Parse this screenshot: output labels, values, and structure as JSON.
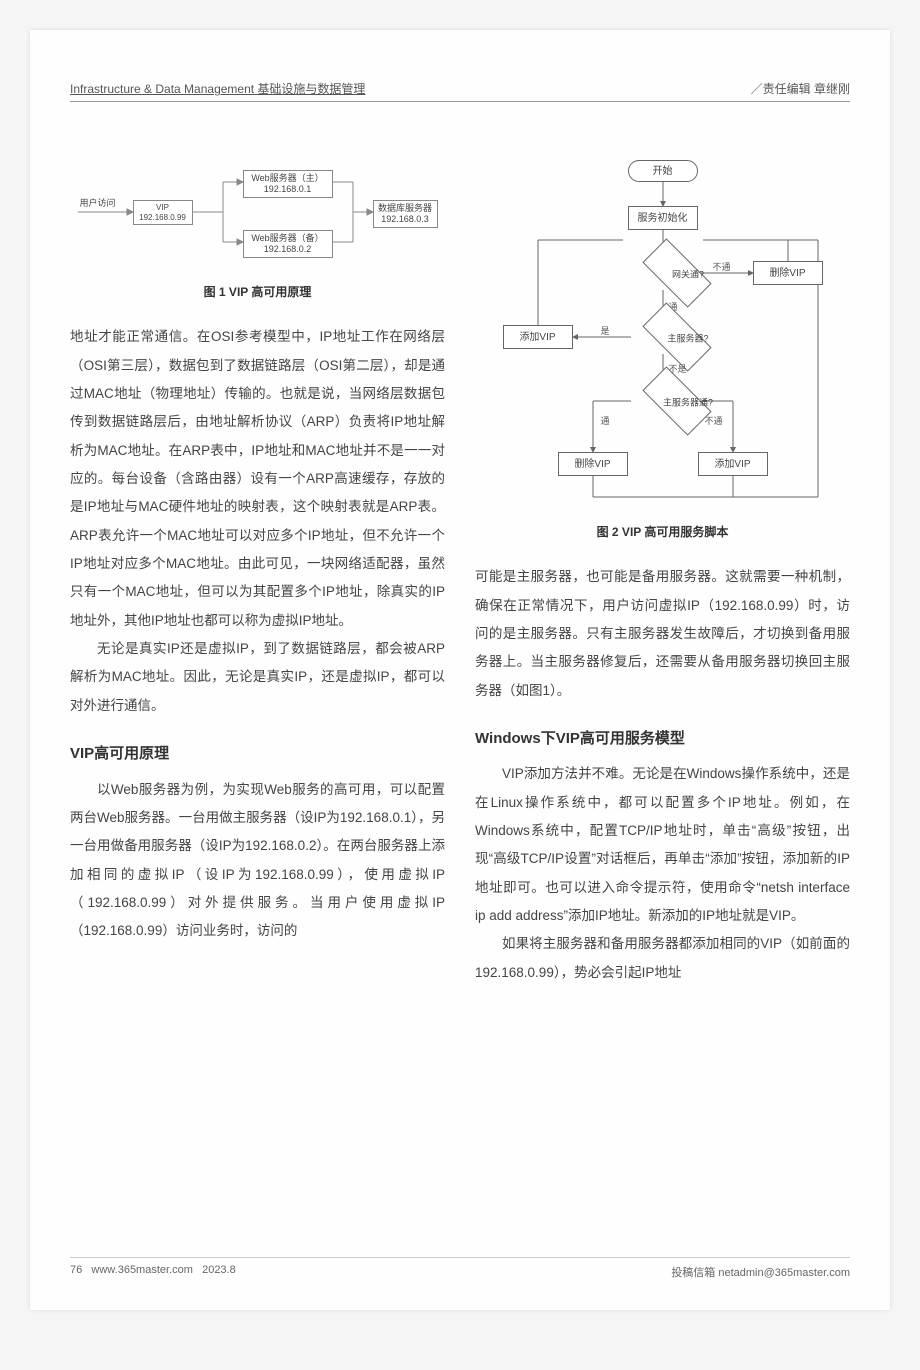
{
  "header": {
    "left": "Infrastructure & Data Management 基础设施与数据管理",
    "right": "／责任编辑 章继刚"
  },
  "fig1": {
    "caption": "图 1 VIP 高可用原理",
    "user_label": "用户访问",
    "vip_box": "VIP\n192.168.0.99",
    "web_main": "Web服务器（主）\n192.168.0.1",
    "web_backup": "Web服务器（备）\n192.168.0.2",
    "db": "数据库服务器\n192.168.0.3",
    "line_color": "#888888"
  },
  "fig2": {
    "caption": "图 2 VIP 高可用服务脚本",
    "start": "开始",
    "init": "服务初始化",
    "gateway": "网关通?",
    "is_master": "主服务器?",
    "master_ok": "主服务器通?",
    "add_vip": "添加VIP",
    "del_vip": "删除VIP",
    "edge_yes": "通",
    "edge_no": "不通",
    "edge_is": "是",
    "edge_not": "不是",
    "line_color": "#666666"
  },
  "left_col": {
    "p1": "地址才能正常通信。在OSI参考模型中，IP地址工作在网络层（OSI第三层），数据包到了数据链路层（OSI第二层），却是通过MAC地址（物理地址）传输的。也就是说，当网络层数据包传到数据链路层后，由地址解析协议（ARP）负责将IP地址解析为MAC地址。在ARP表中，IP地址和MAC地址并不是一一对应的。每台设备（含路由器）设有一个ARP高速缓存，存放的是IP地址与MAC硬件地址的映射表，这个映射表就是ARP表。ARP表允许一个MAC地址可以对应多个IP地址，但不允许一个IP地址对应多个MAC地址。由此可见，一块网络适配器，虽然只有一个MAC地址，但可以为其配置多个IP地址，除真实的IP地址外，其他IP地址也都可以称为虚拟IP地址。",
    "p2": "无论是真实IP还是虚拟IP，到了数据链路层，都会被ARP解析为MAC地址。因此，无论是真实IP，还是虚拟IP，都可以对外进行通信。",
    "h1": "VIP高可用原理",
    "p3": "以Web服务器为例，为实现Web服务的高可用，可以配置两台Web服务器。一台用做主服务器（设IP为192.168.0.1），另一台用做备用服务器（设IP为192.168.0.2）。在两台服务器上添加相同的虚拟IP（设IP为192.168.0.99），使用虚拟IP（192.168.0.99）对外提供服务。当用户使用虚拟IP（192.168.0.99）访问业务时，访问的"
  },
  "right_col": {
    "p1": "可能是主服务器，也可能是备用服务器。这就需要一种机制，确保在正常情况下，用户访问虚拟IP（192.168.0.99）时，访问的是主服务器。只有主服务器发生故障后，才切换到备用服务器上。当主服务器修复后，还需要从备用服务器切换回主服务器（如图1）。",
    "h1": "Windows下VIP高可用服务模型",
    "p2": "VIP添加方法并不难。无论是在Windows操作系统中，还是在Linux操作系统中，都可以配置多个IP地址。例如，在Windows系统中，配置TCP/IP地址时，单击“高级”按钮，出现“高级TCP/IP设置”对话框后，再单击“添加”按钮，添加新的IP地址即可。也可以进入命令提示符，使用命令“netsh interface ip add address”添加IP地址。新添加的IP地址就是VIP。",
    "p3": "如果将主服务器和备用服务器都添加相同的VIP（如前面的192.168.0.99），势必会引起IP地址"
  },
  "footer": {
    "page": "76",
    "site": "www.365master.com",
    "date": "2023.8",
    "right": "投稿信箱 netadmin@365master.com"
  }
}
